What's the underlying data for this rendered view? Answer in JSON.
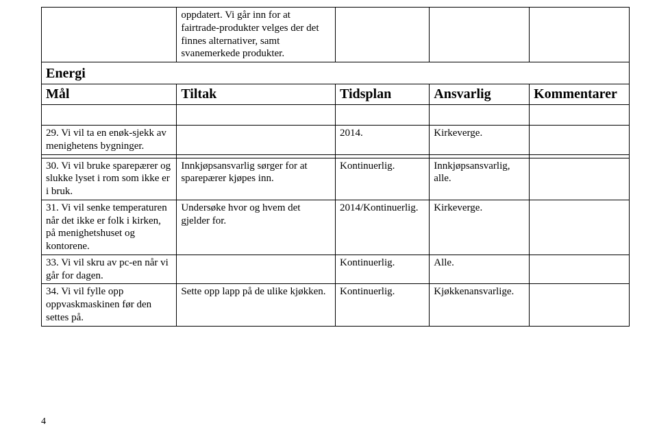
{
  "section": {
    "title": "Energi"
  },
  "headers": {
    "col1": "Mål",
    "col2": "Tiltak",
    "col3": "Tidsplan",
    "col4": "Ansvarlig",
    "col5": "Kommentarer"
  },
  "topRows": [
    {
      "c1": "",
      "c2": "oppdatert. Vi går inn for at fairtrade-produkter velges der det finnes alternativer, samt svanemerkede produkter.",
      "c3": "",
      "c4": "",
      "c5": ""
    }
  ],
  "bodyRows": [
    {
      "c1": "29. Vi vil ta en enøk-sjekk av menighetens bygninger.",
      "c2": "",
      "c3": "2014.",
      "c4": "Kirkeverge.",
      "c5": ""
    },
    {
      "c1": "",
      "c2": "",
      "c3": "",
      "c4": "",
      "c5": ""
    },
    {
      "c1": "30. Vi vil bruke sparepærer og slukke lyset i rom som ikke er i bruk.",
      "c2": "Innkjøpsansvarlig sørger for at sparepærer kjøpes inn.",
      "c3": "Kontinuerlig.",
      "c4": "Innkjøpsansvarlig, alle.",
      "c5": ""
    },
    {
      "c1": "31. Vi vil senke temperaturen når det ikke er folk i kirken, på menighetshuset og kontorene.",
      "c2": "Undersøke hvor og hvem det gjelder for.",
      "c3": "2014/Kontinuerlig.",
      "c4": "Kirkeverge.",
      "c5": ""
    },
    {
      "c1": "33. Vi vil skru av pc-en når vi går for dagen.",
      "c2": "",
      "c3": "Kontinuerlig.",
      "c4": "Alle.",
      "c5": ""
    },
    {
      "c1": "34. Vi vil fylle opp oppvaskmaskinen før den settes på.",
      "c2": "Sette opp lapp på de ulike kjøkken.",
      "c3": "Kontinuerlig.",
      "c4": "Kjøkkenansvarlige.",
      "c5": ""
    }
  ],
  "pageNumber": "4",
  "style": {
    "background_color": "#ffffff",
    "text_color": "#000000",
    "border_color": "#000000",
    "font_family": "Times New Roman",
    "body_font_size_pt": 11,
    "heading_font_size_pt": 15
  }
}
